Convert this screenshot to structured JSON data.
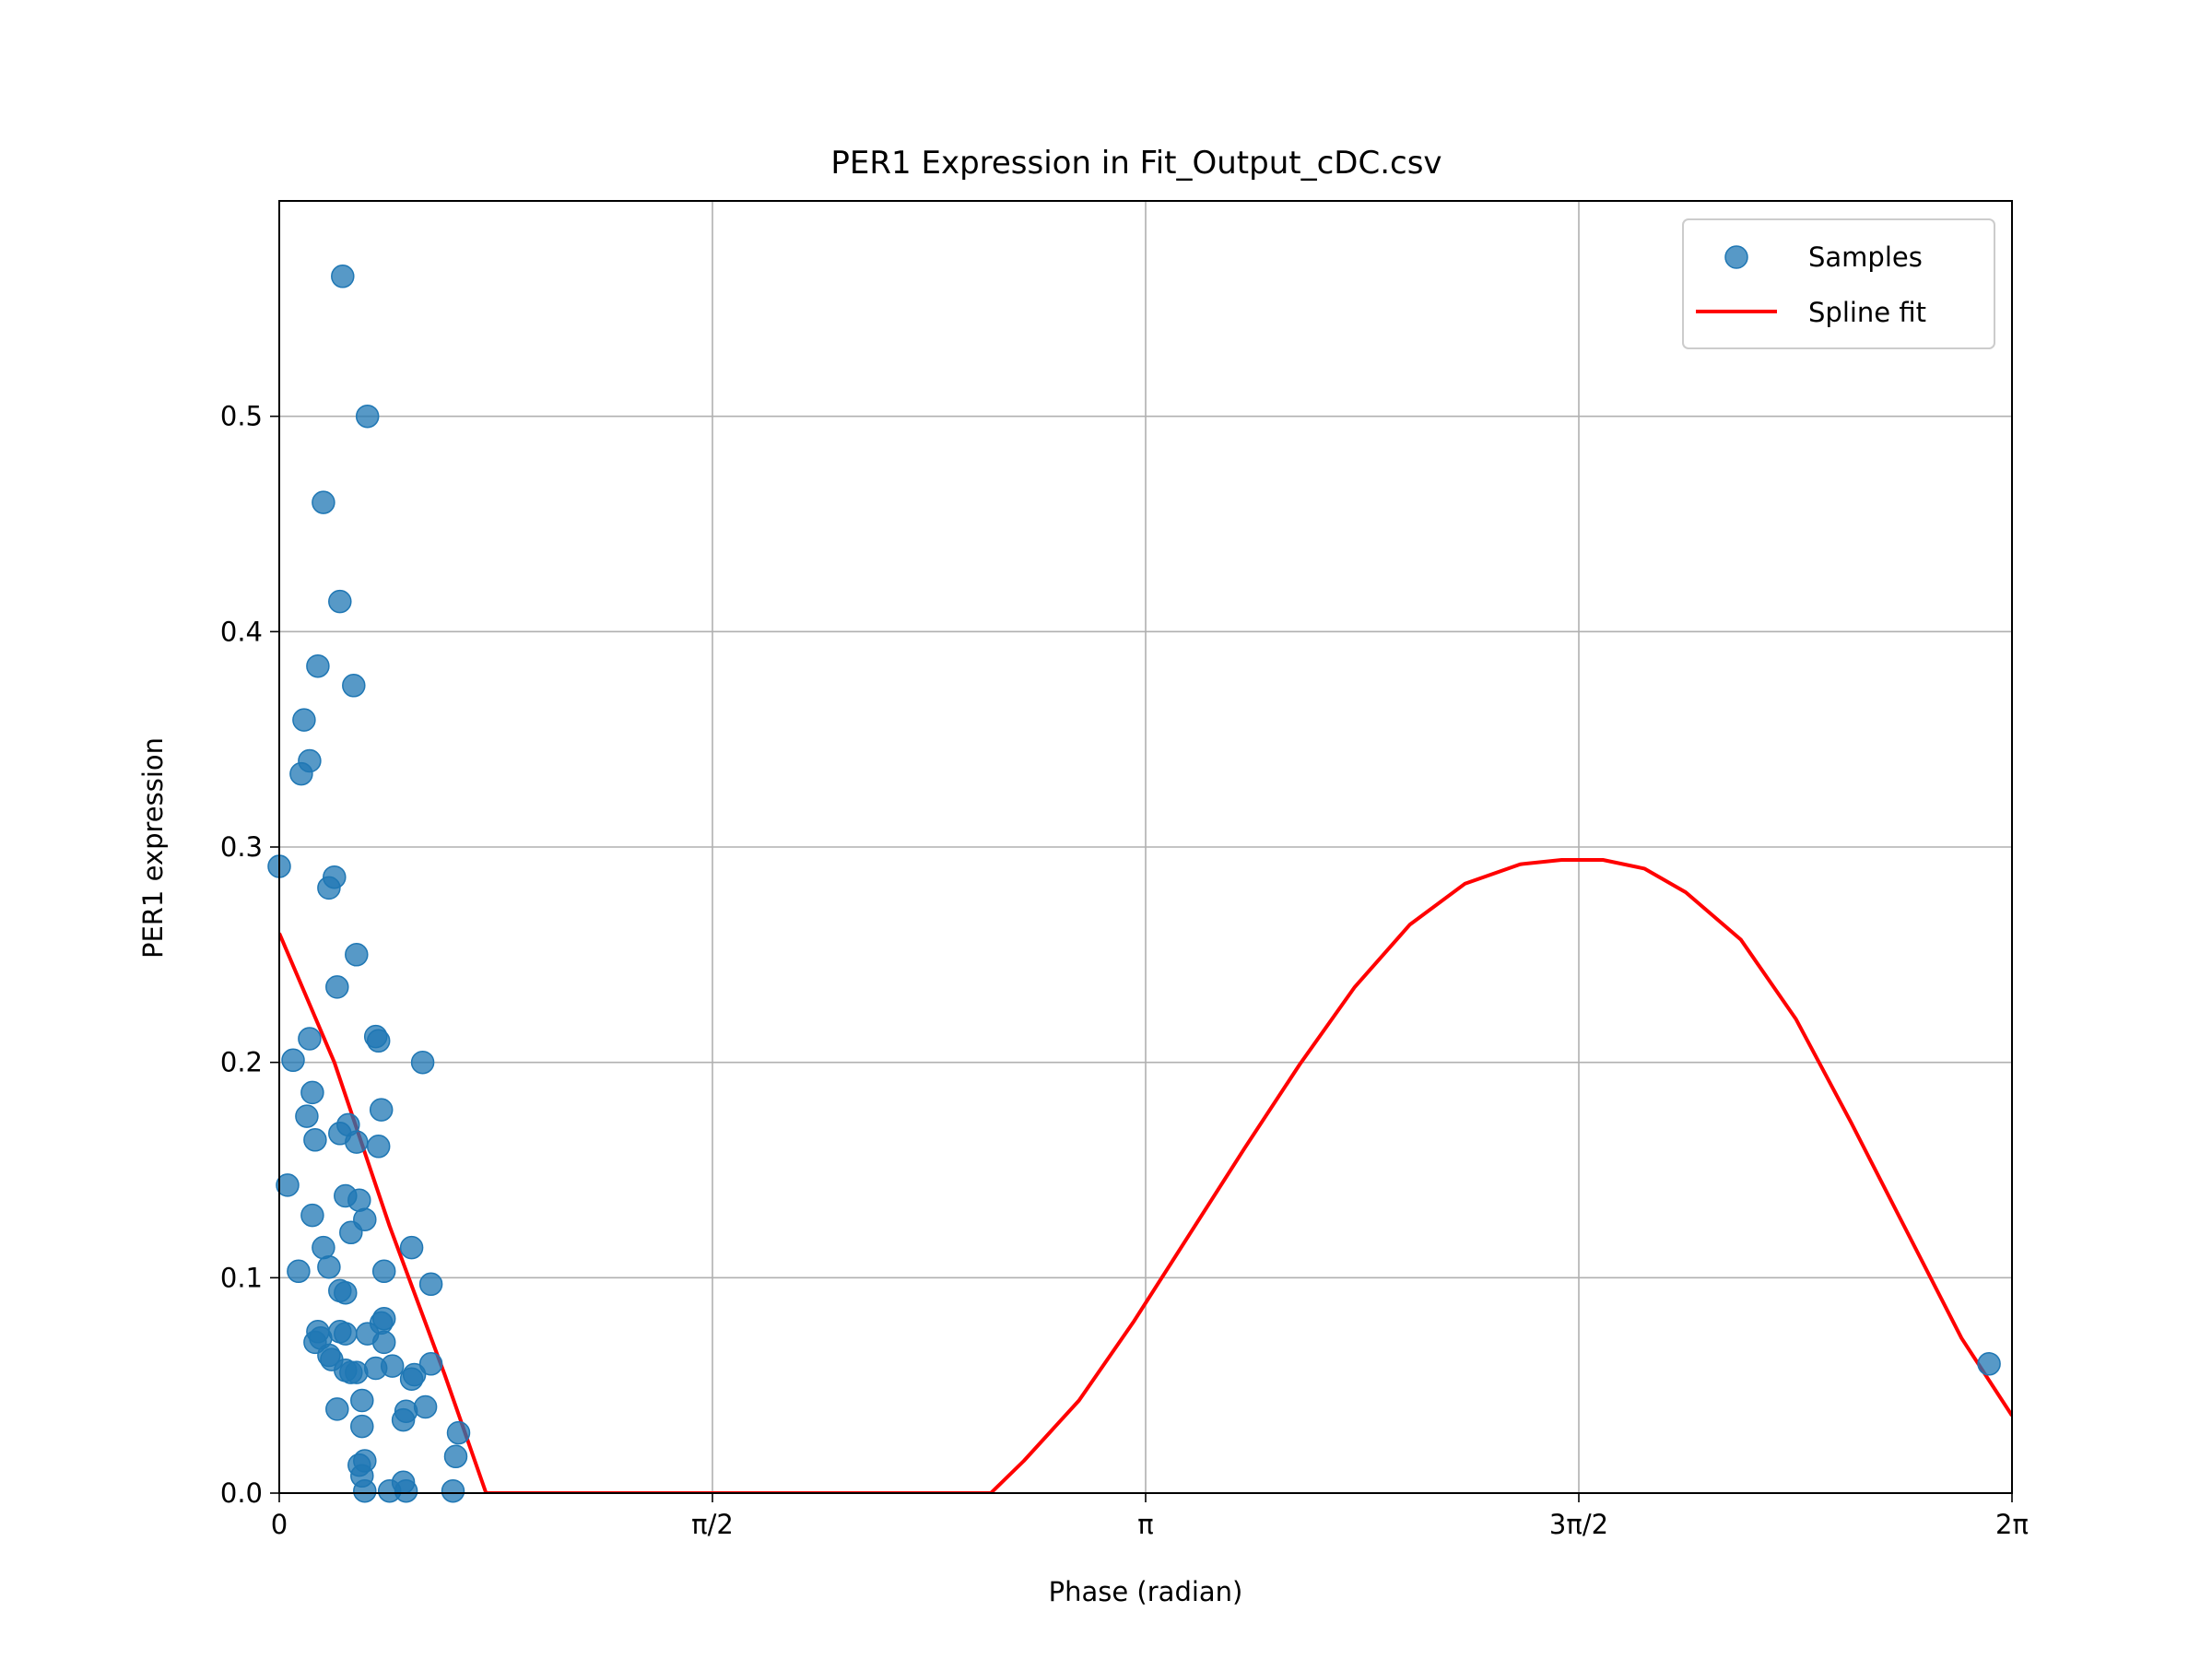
{
  "chart_data": {
    "type": "scatter",
    "title": "PER1 Expression in Fit_Output_cDC.csv",
    "xlabel": "Phase (radian)",
    "ylabel": "PER1 expression",
    "xlim": [
      0,
      6.2832
    ],
    "ylim": [
      0,
      0.6
    ],
    "x_ticks": [
      {
        "value": 0,
        "label": "0"
      },
      {
        "value": 1.5708,
        "label": "π/2"
      },
      {
        "value": 3.1416,
        "label": "π"
      },
      {
        "value": 4.7124,
        "label": "3π/2"
      },
      {
        "value": 6.2832,
        "label": "2π"
      }
    ],
    "y_ticks": [
      {
        "value": 0.0,
        "label": "0.0"
      },
      {
        "value": 0.1,
        "label": "0.1"
      },
      {
        "value": 0.2,
        "label": "0.2"
      },
      {
        "value": 0.3,
        "label": "0.3"
      },
      {
        "value": 0.4,
        "label": "0.4"
      },
      {
        "value": 0.5,
        "label": "0.5"
      }
    ],
    "grid": true,
    "legend_position": "top-right",
    "series": [
      {
        "name": "Samples",
        "kind": "scatter",
        "color": "#1f77b4",
        "points": [
          [
            0.23,
            0.565
          ],
          [
            0.32,
            0.5
          ],
          [
            0.16,
            0.46
          ],
          [
            0.22,
            0.414
          ],
          [
            0.14,
            0.384
          ],
          [
            0.27,
            0.375
          ],
          [
            0.09,
            0.359
          ],
          [
            0.11,
            0.34
          ],
          [
            0.08,
            0.334
          ],
          [
            0.0,
            0.291
          ],
          [
            0.2,
            0.286
          ],
          [
            0.18,
            0.281
          ],
          [
            0.28,
            0.25
          ],
          [
            0.21,
            0.235
          ],
          [
            0.35,
            0.212
          ],
          [
            0.36,
            0.21
          ],
          [
            0.11,
            0.211
          ],
          [
            0.05,
            0.201
          ],
          [
            0.52,
            0.2
          ],
          [
            0.12,
            0.186
          ],
          [
            0.37,
            0.178
          ],
          [
            0.1,
            0.175
          ],
          [
            0.25,
            0.171
          ],
          [
            0.22,
            0.167
          ],
          [
            0.13,
            0.164
          ],
          [
            0.28,
            0.163
          ],
          [
            0.36,
            0.161
          ],
          [
            0.03,
            0.143
          ],
          [
            0.24,
            0.138
          ],
          [
            0.29,
            0.136
          ],
          [
            0.12,
            0.129
          ],
          [
            0.31,
            0.127
          ],
          [
            0.26,
            0.121
          ],
          [
            0.16,
            0.114
          ],
          [
            0.48,
            0.114
          ],
          [
            0.18,
            0.105
          ],
          [
            0.38,
            0.103
          ],
          [
            0.07,
            0.103
          ],
          [
            0.55,
            0.097
          ],
          [
            0.22,
            0.094
          ],
          [
            0.24,
            0.093
          ],
          [
            0.38,
            0.081
          ],
          [
            0.37,
            0.079
          ],
          [
            0.14,
            0.075
          ],
          [
            0.22,
            0.075
          ],
          [
            0.24,
            0.074
          ],
          [
            0.32,
            0.074
          ],
          [
            0.15,
            0.072
          ],
          [
            0.13,
            0.07
          ],
          [
            0.38,
            0.07
          ],
          [
            0.18,
            0.064
          ],
          [
            0.19,
            0.062
          ],
          [
            0.55,
            0.06
          ],
          [
            0.41,
            0.059
          ],
          [
            0.35,
            0.058
          ],
          [
            0.24,
            0.057
          ],
          [
            0.26,
            0.056
          ],
          [
            0.28,
            0.056
          ],
          [
            0.49,
            0.055
          ],
          [
            0.48,
            0.053
          ],
          [
            0.3,
            0.043
          ],
          [
            0.21,
            0.039
          ],
          [
            0.53,
            0.04
          ],
          [
            0.46,
            0.038
          ],
          [
            0.45,
            0.034
          ],
          [
            0.3,
            0.031
          ],
          [
            0.65,
            0.028
          ],
          [
            0.64,
            0.017
          ],
          [
            0.31,
            0.015
          ],
          [
            0.29,
            0.013
          ],
          [
            0.3,
            0.008
          ],
          [
            0.45,
            0.005
          ],
          [
            0.31,
            0.001
          ],
          [
            0.4,
            0.001
          ],
          [
            0.46,
            0.001
          ],
          [
            0.63,
            0.001
          ],
          [
            6.2,
            0.06
          ]
        ]
      },
      {
        "name": "Spline fit",
        "kind": "line",
        "color": "#ff0000",
        "points": [
          [
            0.0,
            0.26
          ],
          [
            0.2,
            0.2
          ],
          [
            0.4,
            0.124
          ],
          [
            0.6,
            0.055
          ],
          [
            0.75,
            0.0
          ],
          [
            2.58,
            0.0
          ],
          [
            2.7,
            0.015
          ],
          [
            2.9,
            0.043
          ],
          [
            3.1,
            0.08
          ],
          [
            3.3,
            0.12
          ],
          [
            3.5,
            0.16
          ],
          [
            3.7,
            0.199
          ],
          [
            3.9,
            0.235
          ],
          [
            4.1,
            0.264
          ],
          [
            4.3,
            0.283
          ],
          [
            4.5,
            0.292
          ],
          [
            4.65,
            0.294
          ],
          [
            4.8,
            0.294
          ],
          [
            4.95,
            0.29
          ],
          [
            5.1,
            0.279
          ],
          [
            5.3,
            0.257
          ],
          [
            5.5,
            0.22
          ],
          [
            5.7,
            0.172
          ],
          [
            5.9,
            0.122
          ],
          [
            6.1,
            0.072
          ],
          [
            6.2832,
            0.036
          ]
        ]
      }
    ]
  }
}
